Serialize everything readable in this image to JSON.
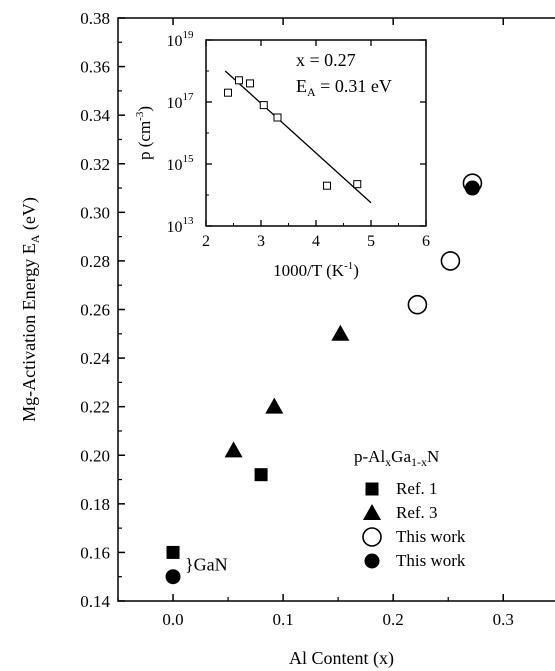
{
  "chart_data": [
    {
      "type": "scatter",
      "xlabel": "Al Content (x)",
      "ylabel_main": "Mg-Activation Energy E",
      "ylabel_sub": "A",
      "ylabel_unit": " (eV)",
      "xlim": [
        -0.05,
        0.35
      ],
      "ylim": [
        0.14,
        0.38
      ],
      "xticks": [
        0.0,
        0.1,
        0.2,
        0.3
      ],
      "xtick_labels": [
        "0.0",
        "0.1",
        "0.2",
        "0.3"
      ],
      "yticks": [
        0.14,
        0.16,
        0.18,
        0.2,
        0.22,
        0.24,
        0.26,
        0.28,
        0.3,
        0.32,
        0.34,
        0.36,
        0.38
      ],
      "ytick_labels": [
        "0.14",
        "0.16",
        "0.18",
        "0.20",
        "0.22",
        "0.24",
        "0.26",
        "0.28",
        "0.30",
        "0.32",
        "0.34",
        "0.36",
        "0.38"
      ],
      "grid": false,
      "legend": {
        "title_prefix": "p-Al",
        "title_sub1": "x",
        "title_mid": "Ga",
        "title_sub2": "1-x",
        "title_suffix": "N",
        "placement": "lower-right"
      },
      "series": [
        {
          "name": "Ref. 1",
          "marker": "filled-square",
          "points": [
            [
              0.0,
              0.16
            ],
            [
              0.08,
              0.192
            ]
          ]
        },
        {
          "name": "Ref. 3",
          "marker": "filled-triangle",
          "points": [
            [
              0.055,
              0.202
            ],
            [
              0.092,
              0.22
            ],
            [
              0.152,
              0.25
            ]
          ]
        },
        {
          "name": "This work",
          "marker": "open-circle",
          "points": [
            [
              0.222,
              0.262
            ],
            [
              0.252,
              0.28
            ],
            [
              0.272,
              0.312
            ]
          ]
        },
        {
          "name": "This work",
          "marker": "filled-circle",
          "points": [
            [
              0.0,
              0.15
            ],
            [
              0.272,
              0.31
            ]
          ]
        }
      ],
      "annotations": [
        {
          "text": "}GaN",
          "at": [
            0.0,
            0.155
          ]
        }
      ]
    },
    {
      "type": "scatter",
      "xlabel_main": "1000/T (K",
      "xlabel_sup": "-1",
      "xlabel_end": ")",
      "ylabel_main": "p (cm",
      "ylabel_sup": "-3",
      "ylabel_end": ")",
      "xlim": [
        2,
        6
      ],
      "ylim_log10": [
        13,
        19
      ],
      "xticks": [
        2,
        3,
        4,
        5,
        6
      ],
      "xtick_labels": [
        "2",
        "3",
        "4",
        "5",
        "6"
      ],
      "ytick_exponents": [
        13,
        15,
        17,
        19
      ],
      "ytick_base": "10",
      "ytick_exps": [
        "13",
        "15",
        "17",
        "19"
      ],
      "log_y": true,
      "grid": false,
      "annotation_x": "x = 0.27",
      "annotation_e_main": "E",
      "annotation_e_sub": "A",
      "annotation_e_val": " = 0.31 eV",
      "points": [
        [
          2.4,
          17.3
        ],
        [
          2.6,
          17.7
        ],
        [
          2.8,
          17.6
        ],
        [
          3.05,
          16.9
        ],
        [
          3.3,
          16.5
        ],
        [
          4.2,
          14.3
        ],
        [
          4.75,
          14.35
        ]
      ],
      "fit_line": [
        [
          2.35,
          18.0
        ],
        [
          5.0,
          13.75
        ]
      ]
    }
  ]
}
